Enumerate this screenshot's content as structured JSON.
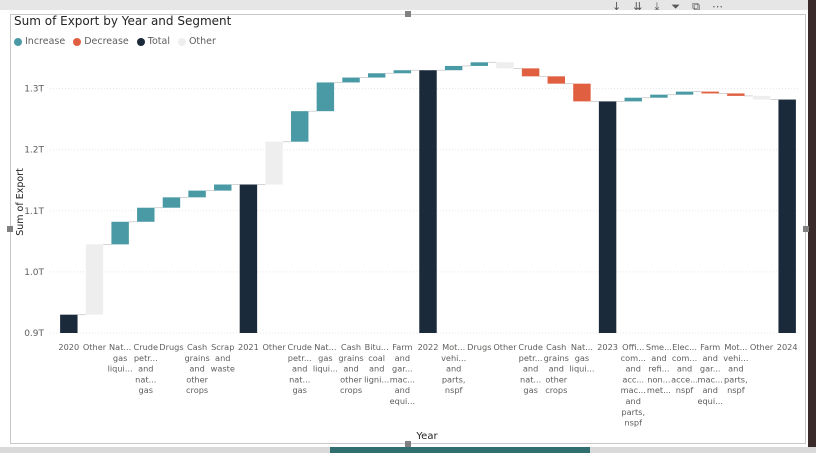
{
  "window": {
    "title": "Sum of Export by Year and Segment"
  },
  "legend": {
    "items": [
      {
        "label": "Increase",
        "color": "#4a9aa5"
      },
      {
        "label": "Decrease",
        "color": "#e15f41"
      },
      {
        "label": "Total",
        "color": "#1b2a3a"
      },
      {
        "label": "Other",
        "color": "#eeeeee"
      }
    ]
  },
  "toolbar": {
    "icons": [
      "drill-down-icon",
      "expand-down-icon",
      "expand-all-icon",
      "filter-icon",
      "focus-mode-icon",
      "more-options-icon"
    ]
  },
  "chart_data": {
    "type": "waterfall",
    "title": "Sum of Export by Year and Segment",
    "xlabel": "Year",
    "ylabel": "Sum of Export",
    "ylim": [
      0.9,
      1.35
    ],
    "yticks": [
      0.9,
      1.0,
      1.1,
      1.2,
      1.3
    ],
    "ytick_labels": [
      "0.9T",
      "1.0T",
      "1.1T",
      "1.2T",
      "1.3T"
    ],
    "colors": {
      "Increase": "#4a9aa5",
      "Decrease": "#e15f41",
      "Total": "#1b2a3a",
      "Other": "#eeeeee"
    },
    "bars": [
      {
        "label": [
          "2020"
        ],
        "kind": "Total",
        "start": 0.9,
        "end": 0.93
      },
      {
        "label": [
          "Other"
        ],
        "kind": "Other",
        "start": 0.93,
        "end": 1.045
      },
      {
        "label": [
          "Nat...",
          "gas",
          "liqui..."
        ],
        "kind": "Increase",
        "start": 1.045,
        "end": 1.082
      },
      {
        "label": [
          "Crude",
          "petr...",
          "and",
          "nat...",
          "gas"
        ],
        "kind": "Increase",
        "start": 1.082,
        "end": 1.105
      },
      {
        "label": [
          "Drugs"
        ],
        "kind": "Increase",
        "start": 1.105,
        "end": 1.122
      },
      {
        "label": [
          "Cash",
          "grains",
          "and",
          "other",
          "crops"
        ],
        "kind": "Increase",
        "start": 1.122,
        "end": 1.133
      },
      {
        "label": [
          "Scrap",
          "and",
          "waste"
        ],
        "kind": "Increase",
        "start": 1.133,
        "end": 1.143
      },
      {
        "label": [
          "2021"
        ],
        "kind": "Total",
        "start": 0.9,
        "end": 1.143
      },
      {
        "label": [
          "Other"
        ],
        "kind": "Other",
        "start": 1.143,
        "end": 1.213
      },
      {
        "label": [
          "Crude",
          "petr...",
          "and",
          "nat...",
          "gas"
        ],
        "kind": "Increase",
        "start": 1.213,
        "end": 1.263
      },
      {
        "label": [
          "Nat...",
          "gas",
          "liqui..."
        ],
        "kind": "Increase",
        "start": 1.263,
        "end": 1.31
      },
      {
        "label": [
          "Cash",
          "grains",
          "and",
          "other",
          "crops"
        ],
        "kind": "Increase",
        "start": 1.31,
        "end": 1.318
      },
      {
        "label": [
          "Bitu...",
          "coal",
          "and",
          "ligni..."
        ],
        "kind": "Increase",
        "start": 1.318,
        "end": 1.325
      },
      {
        "label": [
          "Farm",
          "and",
          "gar...",
          "mac...",
          "and",
          "equi..."
        ],
        "kind": "Increase",
        "start": 1.325,
        "end": 1.33
      },
      {
        "label": [
          "2022"
        ],
        "kind": "Total",
        "start": 0.9,
        "end": 1.33
      },
      {
        "label": [
          "Mot...",
          "vehi...",
          "and",
          "parts,",
          "nspf"
        ],
        "kind": "Increase",
        "start": 1.33,
        "end": 1.337
      },
      {
        "label": [
          "Drugs"
        ],
        "kind": "Increase",
        "start": 1.337,
        "end": 1.343
      },
      {
        "label": [
          "Other"
        ],
        "kind": "Other",
        "start": 1.343,
        "end": 1.333
      },
      {
        "label": [
          "Crude",
          "petr...",
          "and",
          "nat...",
          "gas"
        ],
        "kind": "Decrease",
        "start": 1.333,
        "end": 1.32
      },
      {
        "label": [
          "Cash",
          "grains",
          "and",
          "other",
          "crops"
        ],
        "kind": "Decrease",
        "start": 1.32,
        "end": 1.308
      },
      {
        "label": [
          "Nat...",
          "gas",
          "liqui..."
        ],
        "kind": "Decrease",
        "start": 1.308,
        "end": 1.279
      },
      {
        "label": [
          "2023"
        ],
        "kind": "Total",
        "start": 0.9,
        "end": 1.279
      },
      {
        "label": [
          "Offi...",
          "com...",
          "and",
          "acc...",
          "mac...",
          "and",
          "parts,",
          "nspf"
        ],
        "kind": "Increase",
        "start": 1.279,
        "end": 1.285
      },
      {
        "label": [
          "Sme...",
          "and",
          "refi...",
          "non...",
          "met..."
        ],
        "kind": "Increase",
        "start": 1.285,
        "end": 1.29
      },
      {
        "label": [
          "Elec...",
          "com...",
          "and",
          "acce...",
          "nspf"
        ],
        "kind": "Increase",
        "start": 1.29,
        "end": 1.295
      },
      {
        "label": [
          "Farm",
          "and",
          "gar...",
          "mac...",
          "and",
          "equi..."
        ],
        "kind": "Decrease",
        "start": 1.295,
        "end": 1.292
      },
      {
        "label": [
          "Mot...",
          "vehi...",
          "and",
          "parts,",
          "nspf"
        ],
        "kind": "Decrease",
        "start": 1.292,
        "end": 1.288
      },
      {
        "label": [
          "Other"
        ],
        "kind": "Other",
        "start": 1.288,
        "end": 1.282
      },
      {
        "label": [
          "2024"
        ],
        "kind": "Total",
        "start": 0.9,
        "end": 1.282
      }
    ]
  }
}
